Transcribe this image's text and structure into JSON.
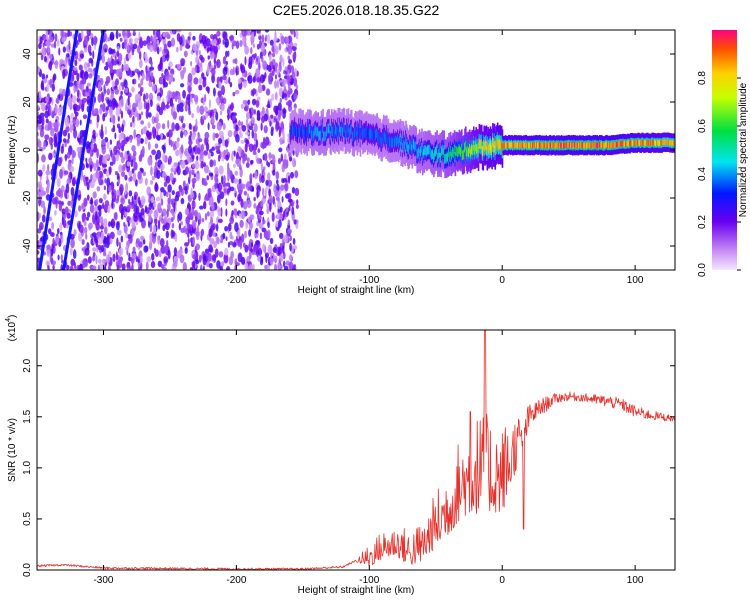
{
  "title": "C2E5.2026.018.18.35.G22",
  "chart_data": [
    {
      "type": "heatmap",
      "title": "C2E5.2026.018.18.35.G22",
      "xlabel": "Height of straight line (km)",
      "ylabel": "Frequency (Hz)",
      "xlim": [
        -350,
        130
      ],
      "ylim": [
        -50,
        50
      ],
      "xticks": [
        -300,
        -200,
        -100,
        0,
        100
      ],
      "xtick_labels": [
        "-300",
        "-200",
        "-100",
        "0",
        "100"
      ],
      "yticks": [
        -40,
        -20,
        0,
        20,
        40
      ],
      "ytick_labels": [
        "-40",
        "-20",
        "0",
        "20",
        "40"
      ],
      "colorbar": {
        "label": "Normalized spectral amplitude",
        "range": [
          0,
          1
        ],
        "ticks": [
          0.0,
          0.2,
          0.4,
          0.6,
          0.8
        ],
        "tick_labels": [
          "0.0",
          "0.2",
          "0.4",
          "0.6",
          "0.8"
        ]
      },
      "features": {
        "noise_region_x": [
          -350,
          -160
        ],
        "noise_amplitude_range": [
          0.05,
          0.25
        ],
        "signal_start_x": -160,
        "signal_frequency_hz": [
          [
            -160,
            8
          ],
          [
            -140,
            7
          ],
          [
            -120,
            8
          ],
          [
            -100,
            6
          ],
          [
            -80,
            4
          ],
          [
            -60,
            -1
          ],
          [
            -40,
            -2
          ],
          [
            -20,
            1
          ],
          [
            0,
            2
          ],
          [
            20,
            2
          ],
          [
            50,
            2
          ],
          [
            80,
            2
          ],
          [
            100,
            3
          ],
          [
            130,
            3
          ]
        ],
        "signal_amplitude": [
          [
            -160,
            0.35
          ],
          [
            -140,
            0.42
          ],
          [
            -120,
            0.4
          ],
          [
            -100,
            0.38
          ],
          [
            -80,
            0.4
          ],
          [
            -60,
            0.45
          ],
          [
            -40,
            0.55
          ],
          [
            -20,
            0.75
          ],
          [
            0,
            0.88
          ],
          [
            30,
            0.93
          ],
          [
            70,
            0.95
          ],
          [
            100,
            0.92
          ],
          [
            130,
            0.85
          ]
        ],
        "sweep_lines": [
          {
            "x": [
              -348,
              -320
            ],
            "y": [
              -50,
              50
            ]
          },
          {
            "x": [
              -330,
              -300
            ],
            "y": [
              -50,
              50
            ]
          }
        ]
      }
    },
    {
      "type": "line",
      "xlabel": "Height of straight line (km)",
      "ylabel": "SNR (10 * v/v)",
      "y_multiplier": "(x10^4)",
      "y_multiplier_base": "(x10",
      "y_multiplier_exp": "4",
      "xlim": [
        -350,
        130
      ],
      "ylim": [
        0,
        2.35
      ],
      "xticks": [
        -300,
        -200,
        -100,
        0,
        100
      ],
      "xtick_labels": [
        "-300",
        "-200",
        "-100",
        "0",
        "100"
      ],
      "yticks": [
        0.0,
        0.5,
        1.0,
        1.5,
        2.0
      ],
      "ytick_labels": [
        "0.0",
        "0.5",
        "1.0",
        "1.5",
        "2.0"
      ],
      "series": [
        {
          "name": "SNR",
          "color": "#e8302a",
          "envelope": [
            [
              -350,
              0.04
            ],
            [
              -330,
              0.05
            ],
            [
              -320,
              0.04
            ],
            [
              -300,
              0.02
            ],
            [
              -200,
              0.01
            ],
            [
              -150,
              0.01
            ],
            [
              -120,
              0.03
            ],
            [
              -100,
              0.15
            ],
            [
              -90,
              0.25
            ],
            [
              -80,
              0.3
            ],
            [
              -70,
              0.22
            ],
            [
              -60,
              0.28
            ],
            [
              -50,
              0.5
            ],
            [
              -40,
              0.7
            ],
            [
              -30,
              0.95
            ],
            [
              -20,
              1.05
            ],
            [
              -10,
              1.05
            ],
            [
              0,
              1.0
            ],
            [
              10,
              1.25
            ],
            [
              20,
              1.5
            ],
            [
              30,
              1.6
            ],
            [
              40,
              1.68
            ],
            [
              50,
              1.7
            ],
            [
              60,
              1.69
            ],
            [
              70,
              1.67
            ],
            [
              80,
              1.65
            ],
            [
              90,
              1.62
            ],
            [
              100,
              1.55
            ],
            [
              110,
              1.52
            ],
            [
              120,
              1.5
            ],
            [
              130,
              1.48
            ]
          ],
          "noise_amplitude": [
            [
              -350,
              0.01
            ],
            [
              -110,
              0.01
            ],
            [
              -100,
              0.12
            ],
            [
              -60,
              0.2
            ],
            [
              -40,
              0.35
            ],
            [
              -20,
              0.5
            ],
            [
              0,
              0.45
            ],
            [
              20,
              0.12
            ],
            [
              40,
              0.05
            ],
            [
              60,
              0.04
            ],
            [
              80,
              0.06
            ],
            [
              100,
              0.06
            ],
            [
              130,
              0.03
            ]
          ],
          "peaks": [
            {
              "x": -13,
              "y": 2.35
            },
            {
              "x": -24,
              "y": 1.55
            },
            {
              "x": 16,
              "y": 0.4
            }
          ]
        }
      ]
    }
  ]
}
